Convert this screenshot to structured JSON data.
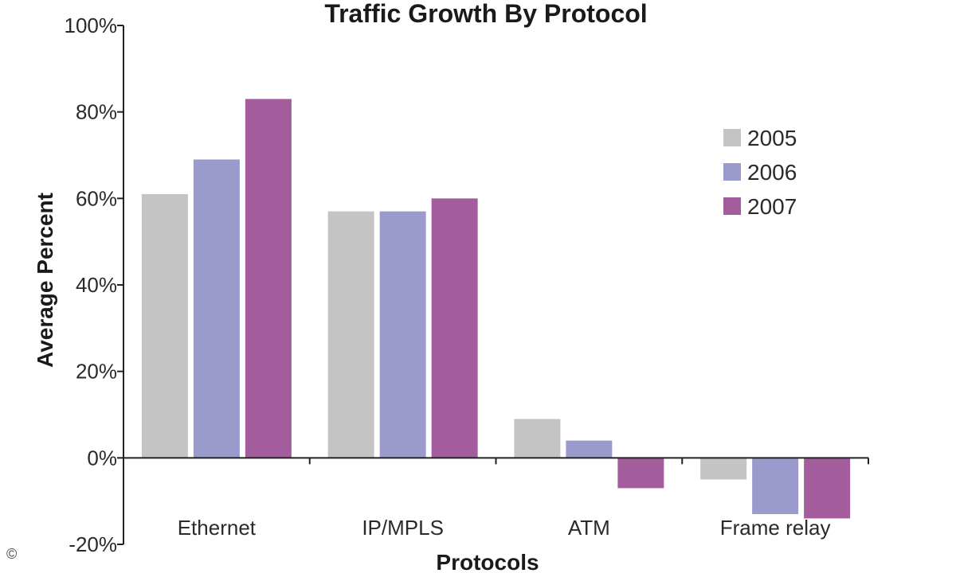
{
  "chart_data": {
    "type": "bar",
    "title": "Traffic Growth By Protocol",
    "xlabel": "Protocols",
    "ylabel": "Average Percent",
    "categories": [
      "Ethernet",
      "IP/MPLS",
      "ATM",
      "Frame relay"
    ],
    "series": [
      {
        "name": "2005",
        "values": [
          61,
          57,
          9,
          -5
        ],
        "color": "#c4c4c4"
      },
      {
        "name": "2006",
        "values": [
          69,
          57,
          4,
          -13
        ],
        "color": "#9a9acc"
      },
      {
        "name": "2007",
        "values": [
          83,
          60,
          -7,
          -14
        ],
        "color": "#a35c9c"
      }
    ],
    "ylim": [
      -20,
      100
    ],
    "yticks": [
      -20,
      0,
      20,
      40,
      60,
      80,
      100
    ],
    "ytick_format": "%",
    "grid": false,
    "legend": "top-right"
  },
  "footer": {
    "copyright_symbol": "©"
  }
}
